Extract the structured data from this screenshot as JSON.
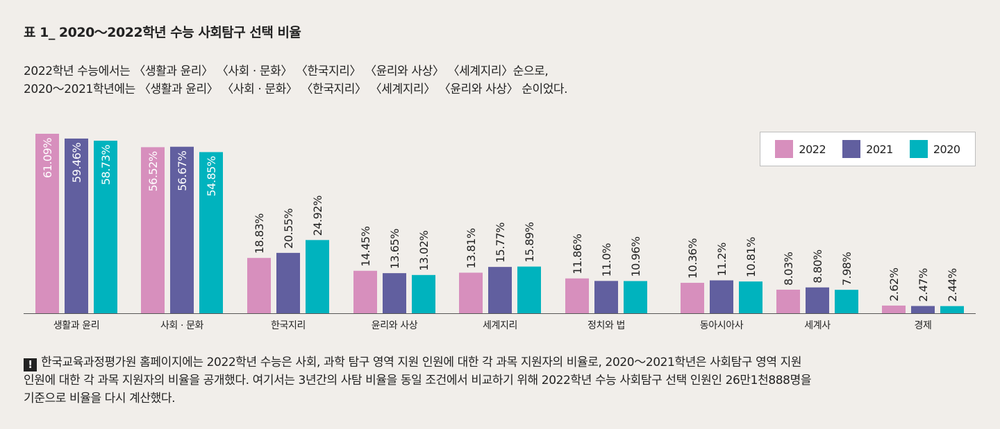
{
  "title": "표 1_ 2020～2022학년 수능 사회탐구 선택 비율",
  "intro": [
    "2022학년 수능에서는 〈생활과 윤리〉 〈사회 · 문화〉 〈한국지리〉 〈윤리와 사상〉 〈세계지리〉순으로,",
    "2020～2021학년에는 〈생활과 윤리〉 〈사회 · 문화〉 〈한국지리〉 〈세계지리〉 〈윤리와 사상〉 순이었다."
  ],
  "chart_data": {
    "type": "bar",
    "categories": [
      "생활과 윤리",
      "사회 · 문화",
      "한국지리",
      "윤리와 사상",
      "세계지리",
      "정치와 법",
      "동아시아사",
      "세계사",
      "경제"
    ],
    "series": [
      {
        "name": "2022",
        "color": "#d78fbd",
        "values": [
          61.09,
          56.52,
          18.83,
          14.45,
          13.81,
          11.86,
          10.36,
          8.03,
          2.62
        ],
        "labels": [
          "61.09%",
          "56.52%",
          "18.83%",
          "14.45%",
          "13.81%",
          "11.86%",
          "10.36%",
          "8.03%",
          "2.62%"
        ]
      },
      {
        "name": "2021",
        "color": "#615f9f",
        "values": [
          59.46,
          56.67,
          20.55,
          13.65,
          15.77,
          11.0,
          11.2,
          8.8,
          2.47
        ],
        "labels": [
          "59.46%",
          "56.67%",
          "20.55%",
          "13.65%",
          "15.77%",
          "11.0%",
          "11.2%",
          "8.80%",
          "2.47%"
        ]
      },
      {
        "name": "2020",
        "color": "#00b3be",
        "values": [
          58.73,
          54.85,
          24.92,
          13.02,
          15.89,
          10.96,
          10.81,
          7.98,
          2.44
        ],
        "labels": [
          "58.73%",
          "54.85%",
          "24.92%",
          "13.02%",
          "15.89%",
          "10.96%",
          "10.81%",
          "7.98%",
          "2.44%"
        ]
      }
    ],
    "ylim": [
      0,
      61.09
    ],
    "legend_position": "top-right",
    "label_color_inside": "#ffffff",
    "label_color_outside": "#222222"
  },
  "legend": [
    {
      "label": "2022",
      "color": "#d78fbd"
    },
    {
      "label": "2021",
      "color": "#615f9f"
    },
    {
      "label": "2020",
      "color": "#00b3be"
    }
  ],
  "note": {
    "icon": "exclamation-icon",
    "lines": [
      "한국교육과정평가원 홈페이지에는 2022학년 수능은 사회, 과학 탐구 영역 지원 인원에 대한 각 과목 지원자의 비율로, 2020～2021학년은 사회탐구 영역 지원",
      "인원에 대한 각 과목 지원자의 비율을 공개했다. 여기서는 3년간의 사탐 비율을 동일 조건에서 비교하기 위해 2022학년 수능 사회탐구 선택 인원인 26만1천888명을",
      "기준으로 비율을 다시 계산했다."
    ]
  }
}
